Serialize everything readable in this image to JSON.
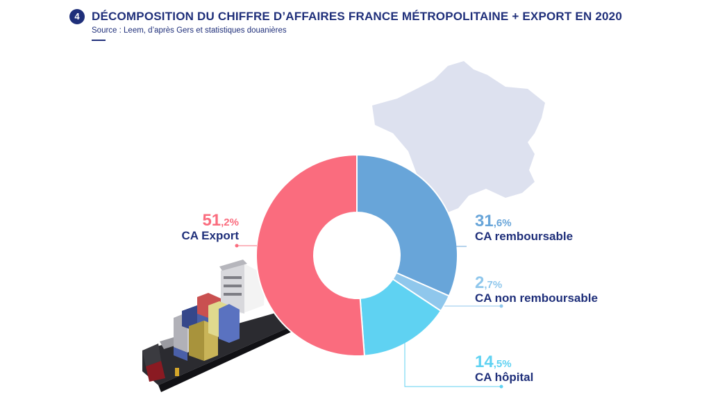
{
  "header": {
    "badge": "4",
    "title": "DÉCOMPOSITION DU CHIFFRE D’AFFAIRES FRANCE MÉTROPOLITAINE + EXPORT EN 2020",
    "source": "Source : Leem, d’après Gers et statistiques douanières"
  },
  "chart_data": {
    "type": "pie",
    "donut": true,
    "title": "DÉCOMPOSITION DU CHIFFRE D’AFFAIRES FRANCE MÉTROPOLITAINE + EXPORT EN 2020",
    "unit": "%",
    "slices": [
      {
        "name": "CA remboursable",
        "value": 31.6,
        "int": "31",
        "dec": ",6",
        "suffix": "%",
        "color": "#68a5d9"
      },
      {
        "name": "CA non remboursable",
        "value": 2.7,
        "int": "2",
        "dec": ",7",
        "suffix": "%",
        "color": "#8fc7ec"
      },
      {
        "name": "CA hôpital",
        "value": 14.5,
        "int": "14",
        "dec": ",5",
        "suffix": "%",
        "color": "#5fd2f2"
      },
      {
        "name": "CA Export",
        "value": 51.2,
        "int": "51",
        "dec": ",2",
        "suffix": "%",
        "color": "#fa6c7e"
      }
    ]
  },
  "colors": {
    "navy": "#1f2f7a",
    "map": "#dde1ef"
  }
}
